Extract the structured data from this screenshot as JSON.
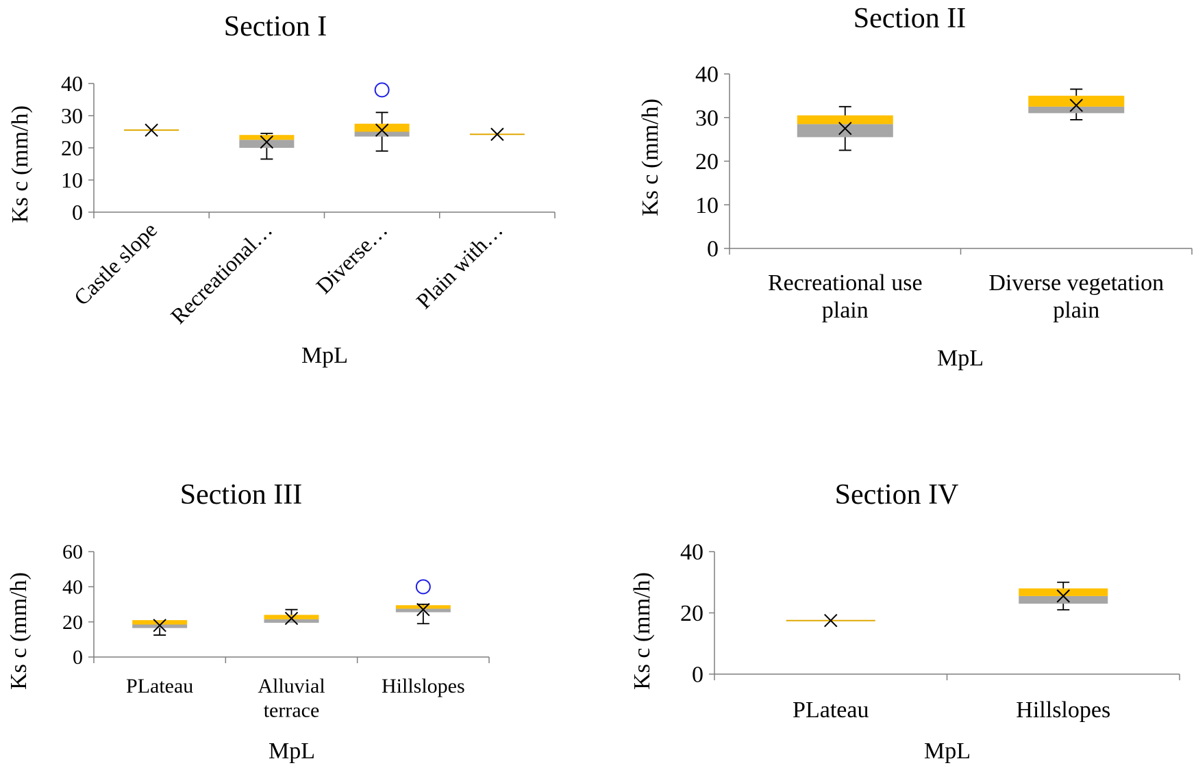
{
  "colors": {
    "upper_box": "#FFC000",
    "upper_box_edge": "#E0A800",
    "lower_box": "#A6A6A6",
    "outlier": "#1F1FE6",
    "axis": "#7F7F7F",
    "text": "#000000"
  },
  "chart_data": [
    {
      "type": "box",
      "title": "Section I",
      "xlabel": "MpL",
      "ylabel": "Ks c (mm/h)",
      "ylim": [
        0,
        40
      ],
      "yticks": [
        "0",
        "10",
        "20",
        "30",
        "40"
      ],
      "tick_rotation": -45,
      "categories": [
        {
          "label": "Castle slope",
          "min": 25.5,
          "q1": 25.5,
          "median": 25.5,
          "q3": 25.5,
          "max": 25.5,
          "mean": 25.5,
          "outliers": []
        },
        {
          "label": "Recreational…",
          "min": 16.5,
          "q1": 20,
          "median": 22.5,
          "q3": 24,
          "max": 24.5,
          "mean": 21.8,
          "outliers": []
        },
        {
          "label": "Diverse…",
          "min": 19,
          "q1": 23.5,
          "median": 25,
          "q3": 27.5,
          "max": 31,
          "mean": 25.5,
          "outliers": [
            38
          ]
        },
        {
          "label": "Plain with…",
          "min": 24.2,
          "q1": 24.2,
          "median": 24.2,
          "q3": 24.2,
          "max": 24.2,
          "mean": 24.2,
          "outliers": []
        }
      ]
    },
    {
      "type": "box",
      "title": "Section II",
      "xlabel": "MpL",
      "ylabel": "Ks c (mm/h)",
      "ylim": [
        0,
        40
      ],
      "yticks": [
        "0",
        "10",
        "20",
        "30",
        "40"
      ],
      "tick_rotation": 0,
      "categories": [
        {
          "label": "Recreational use plain",
          "lines": [
            "Recreational use",
            "plain"
          ],
          "min": 22.5,
          "q1": 25.5,
          "median": 28.5,
          "q3": 30.5,
          "max": 32.5,
          "mean": 27.5,
          "outliers": []
        },
        {
          "label": "Diverse vegetation plain",
          "lines": [
            "Diverse vegetation",
            "plain"
          ],
          "min": 29.5,
          "q1": 31,
          "median": 32.5,
          "q3": 35,
          "max": 36.5,
          "mean": 32.8,
          "outliers": []
        }
      ]
    },
    {
      "type": "box",
      "title": "Section III",
      "xlabel": "MpL",
      "ylabel": "Ks c (mm/h)",
      "ylim": [
        0,
        60
      ],
      "yticks": [
        "0",
        "20",
        "40",
        "60"
      ],
      "tick_rotation": 0,
      "categories": [
        {
          "label": "PLateau",
          "lines": [
            "PLateau"
          ],
          "min": 12.5,
          "q1": 16.5,
          "median": 18.5,
          "q3": 21,
          "max": 21,
          "mean": 18,
          "outliers": []
        },
        {
          "label": "Alluvial terrace",
          "lines": [
            "Alluvial",
            "terrace"
          ],
          "min": 19.5,
          "q1": 19.5,
          "median": 21.5,
          "q3": 24,
          "max": 27,
          "mean": 22,
          "outliers": []
        },
        {
          "label": "Hillslopes",
          "lines": [
            "Hillslopes"
          ],
          "min": 19,
          "q1": 25.5,
          "median": 27.5,
          "q3": 29.5,
          "max": 30,
          "mean": 27,
          "outliers": [
            40
          ]
        }
      ]
    },
    {
      "type": "box",
      "title": "Section IV",
      "xlabel": "MpL",
      "ylabel": "Ks c (mm/h)",
      "ylim": [
        0,
        40
      ],
      "yticks": [
        "0",
        "20",
        "40"
      ],
      "tick_rotation": 0,
      "categories": [
        {
          "label": "PLateau",
          "lines": [
            "PLateau"
          ],
          "min": 17.5,
          "q1": 17.5,
          "median": 17.5,
          "q3": 17.5,
          "max": 17.5,
          "mean": 17.5,
          "outliers": []
        },
        {
          "label": "Hillslopes",
          "lines": [
            "Hillslopes"
          ],
          "min": 21,
          "q1": 23,
          "median": 25.5,
          "q3": 28,
          "max": 30,
          "mean": 25.5,
          "outliers": []
        }
      ]
    }
  ]
}
